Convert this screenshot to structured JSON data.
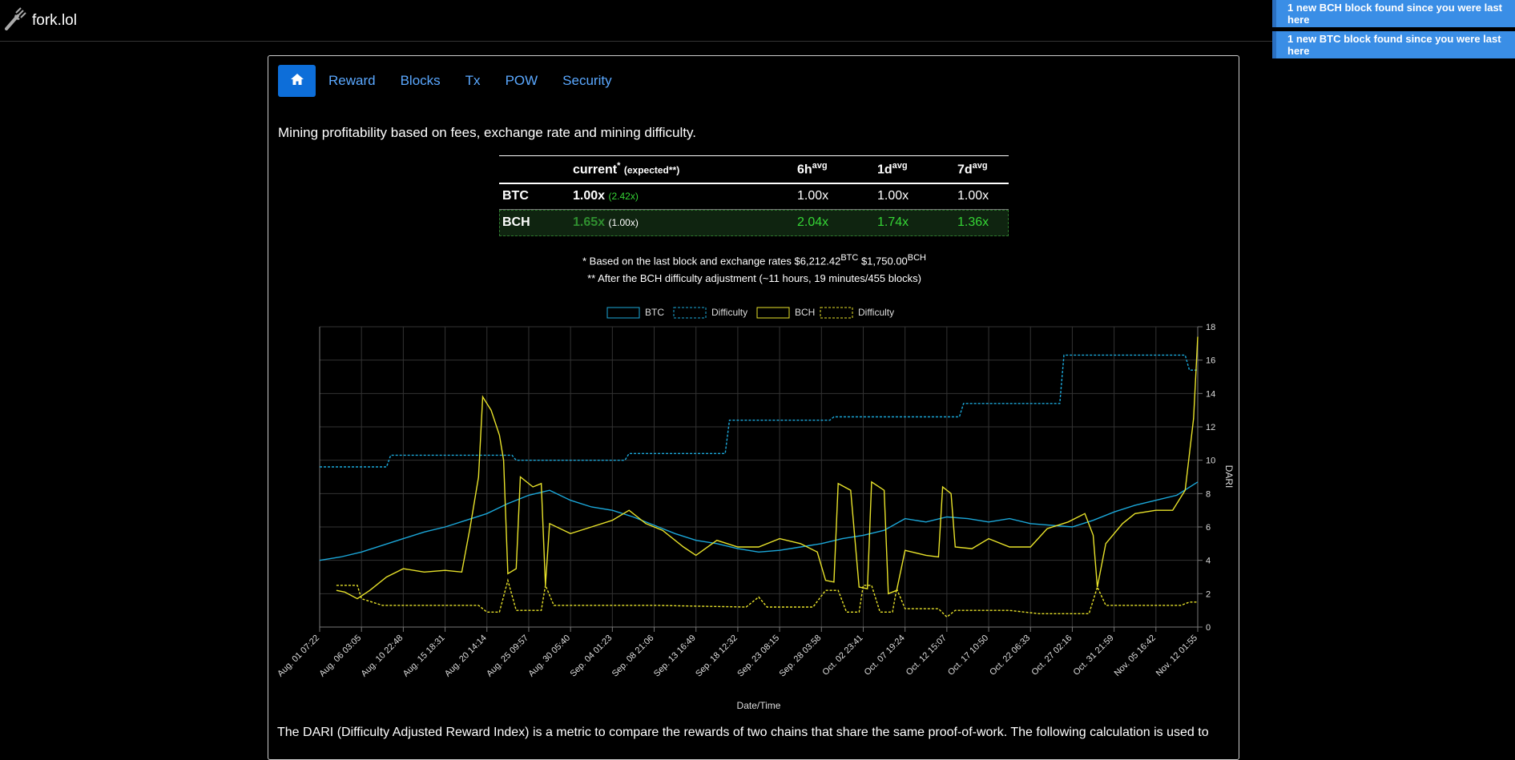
{
  "brand": {
    "name": "fork.lol",
    "icon": "fork-icon"
  },
  "notifications": [
    "1 new BCH block found since you were last here",
    "1 new BTC block found since you were last here"
  ],
  "nav": {
    "home_icon": "home-icon",
    "items": [
      "Reward",
      "Blocks",
      "Tx",
      "POW",
      "Security"
    ]
  },
  "lead": "Mining profitability based on fees, exchange rate and mining difficulty.",
  "table": {
    "headers": {
      "current": "current",
      "current_sup": "*",
      "expected": "(expected**)",
      "h6": "6h",
      "d1": "1d",
      "d7": "7d",
      "avg": "avg"
    },
    "rows": [
      {
        "coin": "BTC",
        "current": "1.00x",
        "expected": "(2.42x)",
        "h6": "1.00x",
        "d1": "1.00x",
        "d7": "1.00x"
      },
      {
        "coin": "BCH",
        "current": "1.65x",
        "expected": "(1.00x)",
        "h6": "2.04x",
        "d1": "1.74x",
        "d7": "1.36x"
      }
    ]
  },
  "notes": {
    "n1_prefix": "* Based on the last block and exchange rates $6,212.42",
    "n1_btc": "BTC",
    "n1_mid": " $1,750.00",
    "n1_bch": "BCH",
    "n2": "** After the BCH difficulty adjustment (~11 hours, 19 minutes/455 blocks)"
  },
  "footer_text": "The DARI (Difficulty Adjusted Reward Index) is a metric to compare the rewards of two chains that share the same proof-of-work. The following calculation is used to",
  "colors": {
    "btc": "#1ba7d9",
    "bch": "#e8e22a",
    "grid": "#333333",
    "accent": "#0d6ed9"
  },
  "chart_data": {
    "type": "line",
    "ylabel": "DARI",
    "xlabel": "Date/Time",
    "ylim": [
      0,
      18
    ],
    "y_ticks": [
      "0",
      "2",
      "4",
      "6",
      "8",
      "10",
      "12",
      "14",
      "16",
      "18"
    ],
    "x_ticks": [
      "Aug. 01 07:22",
      "Aug. 06 03:05",
      "Aug. 10 22:48",
      "Aug. 15 18:31",
      "Aug. 20 14:14",
      "Aug. 25 09:57",
      "Aug. 30 05:40",
      "Sep. 04 01:23",
      "Sep. 08 21:06",
      "Sep. 13 16:49",
      "Sep. 18 12:32",
      "Sep. 23 08:15",
      "Sep. 28 03:58",
      "Oct. 02 23:41",
      "Oct. 07 19:24",
      "Oct. 12 15:07",
      "Oct. 17 10:50",
      "Oct. 22 06:33",
      "Oct. 27 02:16",
      "Oct. 31 21:59",
      "Nov. 05 16:42",
      "Nov. 12 01:55"
    ],
    "legend": [
      "BTC",
      "Difficulty",
      "BCH",
      "Difficulty"
    ],
    "grid": true,
    "series": [
      {
        "name": "BTC",
        "style": "solid",
        "color": "#1ba7d9",
        "points": [
          [
            0,
            4.0
          ],
          [
            0.5,
            4.2
          ],
          [
            1,
            4.5
          ],
          [
            1.5,
            4.9
          ],
          [
            2,
            5.3
          ],
          [
            2.5,
            5.7
          ],
          [
            3,
            6.0
          ],
          [
            3.5,
            6.4
          ],
          [
            4,
            6.8
          ],
          [
            4.5,
            7.4
          ],
          [
            5,
            7.9
          ],
          [
            5.5,
            8.2
          ],
          [
            6,
            7.6
          ],
          [
            6.5,
            7.2
          ],
          [
            7,
            7.0
          ],
          [
            7.5,
            6.6
          ],
          [
            8,
            6.1
          ],
          [
            8.5,
            5.6
          ],
          [
            9,
            5.2
          ],
          [
            9.5,
            5.0
          ],
          [
            10,
            4.7
          ],
          [
            10.5,
            4.5
          ],
          [
            11,
            4.6
          ],
          [
            11.5,
            4.8
          ],
          [
            12,
            5.0
          ],
          [
            12.5,
            5.3
          ],
          [
            13,
            5.5
          ],
          [
            13.5,
            5.8
          ],
          [
            14,
            6.5
          ],
          [
            14.5,
            6.3
          ],
          [
            15,
            6.6
          ],
          [
            15.5,
            6.5
          ],
          [
            16,
            6.3
          ],
          [
            16.5,
            6.5
          ],
          [
            17,
            6.2
          ],
          [
            17.5,
            6.1
          ],
          [
            18,
            6.0
          ],
          [
            18.5,
            6.4
          ],
          [
            19,
            6.9
          ],
          [
            19.5,
            7.3
          ],
          [
            20,
            7.6
          ],
          [
            20.5,
            7.9
          ],
          [
            21,
            8.7
          ]
        ]
      },
      {
        "name": "Difficulty",
        "style": "dashed",
        "color": "#1ba7d9",
        "points": [
          [
            0,
            9.6
          ],
          [
            1.6,
            9.6
          ],
          [
            1.7,
            10.3
          ],
          [
            4.6,
            10.3
          ],
          [
            4.7,
            10.0
          ],
          [
            7.3,
            10.0
          ],
          [
            7.4,
            10.4
          ],
          [
            9.7,
            10.4
          ],
          [
            9.8,
            12.4
          ],
          [
            12.2,
            12.4
          ],
          [
            12.3,
            12.6
          ],
          [
            15.3,
            12.6
          ],
          [
            15.4,
            13.4
          ],
          [
            17.7,
            13.4
          ],
          [
            17.8,
            16.3
          ],
          [
            20.7,
            16.3
          ],
          [
            20.8,
            15.4
          ],
          [
            21,
            15.4
          ]
        ]
      },
      {
        "name": "BCH",
        "style": "solid",
        "color": "#e8e22a",
        "points": [
          [
            0.4,
            2.2
          ],
          [
            0.6,
            2.1
          ],
          [
            0.9,
            1.7
          ],
          [
            1.2,
            2.2
          ],
          [
            1.6,
            3.0
          ],
          [
            2.0,
            3.5
          ],
          [
            2.5,
            3.3
          ],
          [
            3.0,
            3.4
          ],
          [
            3.4,
            3.3
          ],
          [
            3.6,
            6.0
          ],
          [
            3.8,
            9.0
          ],
          [
            3.9,
            13.8
          ],
          [
            4.1,
            13.0
          ],
          [
            4.3,
            11.5
          ],
          [
            4.4,
            10.0
          ],
          [
            4.5,
            3.2
          ],
          [
            4.7,
            3.5
          ],
          [
            4.8,
            9.0
          ],
          [
            5.1,
            8.4
          ],
          [
            5.3,
            8.6
          ],
          [
            5.4,
            2.5
          ],
          [
            5.5,
            6.2
          ],
          [
            6.0,
            5.6
          ],
          [
            6.5,
            6.0
          ],
          [
            7.0,
            6.4
          ],
          [
            7.4,
            7.0
          ],
          [
            7.8,
            6.2
          ],
          [
            8.2,
            5.8
          ],
          [
            8.7,
            4.8
          ],
          [
            9.0,
            4.3
          ],
          [
            9.5,
            5.2
          ],
          [
            10.0,
            4.8
          ],
          [
            10.5,
            4.8
          ],
          [
            11.0,
            5.3
          ],
          [
            11.5,
            5.0
          ],
          [
            11.9,
            4.5
          ],
          [
            12.1,
            2.8
          ],
          [
            12.3,
            2.7
          ],
          [
            12.4,
            8.6
          ],
          [
            12.7,
            8.2
          ],
          [
            12.9,
            2.4
          ],
          [
            13.1,
            2.3
          ],
          [
            13.2,
            8.7
          ],
          [
            13.5,
            8.2
          ],
          [
            13.6,
            2.0
          ],
          [
            13.8,
            2.2
          ],
          [
            14.0,
            4.6
          ],
          [
            14.5,
            4.3
          ],
          [
            14.8,
            4.2
          ],
          [
            14.9,
            8.4
          ],
          [
            15.1,
            8.0
          ],
          [
            15.2,
            4.8
          ],
          [
            15.6,
            4.7
          ],
          [
            16.0,
            5.3
          ],
          [
            16.5,
            4.8
          ],
          [
            17.0,
            4.8
          ],
          [
            17.4,
            5.9
          ],
          [
            17.9,
            6.3
          ],
          [
            18.3,
            6.8
          ],
          [
            18.5,
            5.5
          ],
          [
            18.6,
            2.4
          ],
          [
            18.8,
            5.0
          ],
          [
            19.2,
            6.2
          ],
          [
            19.5,
            6.8
          ],
          [
            20.0,
            7.0
          ],
          [
            20.4,
            7.0
          ],
          [
            20.7,
            8.2
          ],
          [
            20.9,
            12.5
          ],
          [
            21.0,
            17.4
          ]
        ]
      },
      {
        "name": "Difficulty",
        "style": "dashed",
        "color": "#e8e22a",
        "points": [
          [
            0.4,
            2.5
          ],
          [
            0.9,
            2.5
          ],
          [
            1.0,
            1.7
          ],
          [
            1.5,
            1.3
          ],
          [
            3.8,
            1.3
          ],
          [
            4.0,
            0.9
          ],
          [
            4.3,
            0.9
          ],
          [
            4.5,
            2.8
          ],
          [
            4.7,
            1.0
          ],
          [
            5.3,
            1.0
          ],
          [
            5.4,
            2.5
          ],
          [
            5.6,
            1.3
          ],
          [
            8.0,
            1.3
          ],
          [
            10.2,
            1.2
          ],
          [
            10.5,
            1.8
          ],
          [
            10.7,
            1.2
          ],
          [
            11.8,
            1.2
          ],
          [
            12.1,
            2.2
          ],
          [
            12.4,
            2.2
          ],
          [
            12.6,
            0.9
          ],
          [
            12.9,
            0.9
          ],
          [
            13.0,
            2.5
          ],
          [
            13.2,
            2.5
          ],
          [
            13.4,
            0.9
          ],
          [
            13.7,
            0.9
          ],
          [
            13.8,
            2.3
          ],
          [
            14.0,
            1.1
          ],
          [
            14.8,
            1.1
          ],
          [
            15.0,
            0.6
          ],
          [
            15.2,
            1.0
          ],
          [
            16.5,
            1.0
          ],
          [
            17.2,
            0.8
          ],
          [
            18.4,
            0.8
          ],
          [
            18.6,
            2.4
          ],
          [
            18.8,
            1.3
          ],
          [
            20.6,
            1.3
          ],
          [
            20.8,
            1.5
          ],
          [
            21.0,
            1.5
          ]
        ]
      }
    ]
  }
}
